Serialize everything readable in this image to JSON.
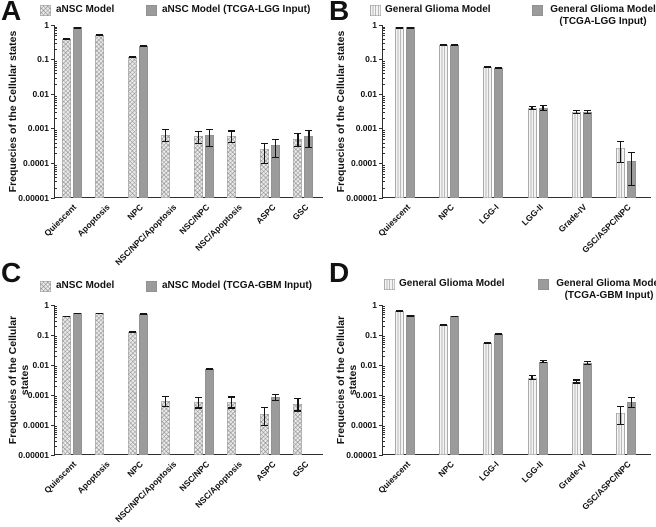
{
  "axes": {
    "yscale": "log",
    "ylim": [
      1e-05,
      1
    ],
    "y_ticks": [
      "1",
      "0.1",
      "0.01",
      "0.001",
      "0.0001",
      "0.00001"
    ]
  },
  "colors": {
    "light_bar": "#eaeaea",
    "dark_bar": "#9b9b9b",
    "error_bar": "#141414",
    "axis": "#2f2f2f"
  },
  "chart_data": [
    {
      "panel_label": "A",
      "type": "bar",
      "yscale": "log",
      "ylim": [
        1e-05,
        1
      ],
      "ylabel": "Frequecies of the Cellular states",
      "legend": [
        {
          "label": "aNSC Model",
          "label2": "",
          "pattern": "diamond",
          "color": "#eaeaea"
        },
        {
          "label": "aNSC Model (TCGA-LGG Input)",
          "label2": "",
          "pattern": "solid",
          "color": "#9b9b9b"
        }
      ],
      "categories": [
        "Quiescent",
        "Apoptosis",
        "NPC",
        "NSC/NPC/Apoptosis",
        "NSC/NPC",
        "NSC/Apoptosis",
        "ASPC",
        "GSC"
      ],
      "series": [
        {
          "name": "aNSC Model",
          "values": [
            0.4,
            0.53,
            0.12,
            0.00068,
            0.0006,
            0.00063,
            0.00026,
            0.0005
          ],
          "err_lo": [
            0.39,
            0.52,
            0.115,
            0.00042,
            0.00037,
            0.00038,
            9.5e-05,
            0.0003
          ],
          "err_hi": [
            0.41,
            0.54,
            0.125,
            0.00098,
            0.00088,
            0.0009,
            0.0004,
            0.00078
          ]
        },
        {
          "name": "aNSC Model (TCGA-LGG Input)",
          "values": [
            0.85,
            null,
            0.25,
            null,
            0.00065,
            null,
            0.00035,
            0.0006
          ],
          "err_lo": [
            0.83,
            null,
            0.24,
            null,
            0.0003,
            null,
            0.00014,
            0.00028
          ],
          "err_hi": [
            0.87,
            null,
            0.26,
            null,
            0.00099,
            null,
            0.00052,
            0.00095
          ]
        }
      ]
    },
    {
      "panel_label": "B",
      "type": "bar",
      "yscale": "log",
      "ylim": [
        1e-05,
        1
      ],
      "ylabel": "Frequecies of the Cellular states",
      "legend": [
        {
          "label": "General Glioma Model",
          "label2": "",
          "pattern": "vstripe",
          "color": "#f4f4f4"
        },
        {
          "label": "General Glioma Model",
          "label2": "(TCGA-LGG Input)",
          "pattern": "solid",
          "color": "#9b9b9b"
        }
      ],
      "categories": [
        "Quiescent",
        "NPC",
        "LGG-I",
        "LGG-II",
        "Grade-IV",
        "GSC/ASPC/NPC"
      ],
      "series": [
        {
          "name": "General Glioma Model",
          "values": [
            0.85,
            0.27,
            0.06,
            0.004,
            0.003,
            0.00028
          ],
          "err_lo": [
            0.83,
            0.26,
            0.056,
            0.0034,
            0.0026,
            0.0001
          ],
          "err_hi": [
            0.87,
            0.28,
            0.064,
            0.0047,
            0.0035,
            0.00045
          ]
        },
        {
          "name": "General Glioma Model (TCGA-LGG Input)",
          "values": [
            0.85,
            0.27,
            0.059,
            0.004,
            0.003,
            0.00012
          ],
          "err_lo": [
            0.83,
            0.26,
            0.055,
            0.0033,
            0.0026,
            2.2e-05
          ],
          "err_hi": [
            0.87,
            0.28,
            0.063,
            0.0048,
            0.0035,
            0.00022
          ]
        }
      ]
    },
    {
      "panel_label": "C",
      "type": "bar",
      "yscale": "log",
      "ylim": [
        1e-05,
        1
      ],
      "ylabel": "Frequecies of the Cellular states",
      "legend": [
        {
          "label": "aNSC Model",
          "label2": "",
          "pattern": "diamond",
          "color": "#eaeaea"
        },
        {
          "label": "aNSC Model (TCGA-GBM Input)",
          "label2": "",
          "pattern": "solid",
          "color": "#9b9b9b"
        }
      ],
      "categories": [
        "Quiescent",
        "Apoptosis",
        "NPC",
        "NSC/NPC/Apoptosis",
        "NSC/NPC",
        "NSC/Apoptosis",
        "ASPC",
        "GSC"
      ],
      "series": [
        {
          "name": "aNSC Model",
          "values": [
            0.42,
            0.55,
            0.13,
            0.00063,
            0.0006,
            0.0006,
            0.00023,
            0.0005
          ],
          "err_lo": [
            0.41,
            0.54,
            0.125,
            0.0004,
            0.00035,
            0.00035,
            9e-05,
            0.00028
          ],
          "err_hi": [
            0.43,
            0.56,
            0.135,
            0.00092,
            0.00085,
            0.0009,
            0.0004,
            0.0008
          ]
        },
        {
          "name": "aNSC Model (TCGA-GBM Input)",
          "values": [
            0.55,
            null,
            0.52,
            null,
            0.0075,
            null,
            0.00085,
            null
          ],
          "err_lo": [
            0.54,
            null,
            0.51,
            null,
            0.0068,
            null,
            0.00062,
            null
          ],
          "err_hi": [
            0.56,
            null,
            0.53,
            null,
            0.0082,
            null,
            0.0011,
            null
          ]
        }
      ]
    },
    {
      "panel_label": "D",
      "type": "bar",
      "yscale": "log",
      "ylim": [
        1e-05,
        1
      ],
      "ylabel": "Frequecies of the Cellular states",
      "legend": [
        {
          "label": "General Glioma Model",
          "label2": "",
          "pattern": "vstripe",
          "color": "#f4f4f4"
        },
        {
          "label": "General Glioma Model",
          "label2": "(TCGA-GBM Input)",
          "pattern": "solid",
          "color": "#9b9b9b"
        }
      ],
      "categories": [
        "Quiescent",
        "NPC",
        "LGG-I",
        "LGG-II",
        "Grade-IV",
        "GSC/ASPC/NPC"
      ],
      "series": [
        {
          "name": "General Glioma Model",
          "values": [
            0.65,
            0.22,
            0.055,
            0.0038,
            0.0028,
            0.00026
          ],
          "err_lo": [
            0.63,
            0.21,
            0.052,
            0.0031,
            0.0024,
            0.0001
          ],
          "err_hi": [
            0.67,
            0.23,
            0.058,
            0.0046,
            0.0033,
            0.00042
          ]
        },
        {
          "name": "General Glioma Model (TCGA-GBM Input)",
          "values": [
            0.45,
            0.42,
            0.11,
            0.013,
            0.012,
            0.0006
          ],
          "err_lo": [
            0.44,
            0.41,
            0.105,
            0.0115,
            0.0102,
            0.00037
          ],
          "err_hi": [
            0.46,
            0.43,
            0.115,
            0.0148,
            0.0138,
            0.00085
          ]
        }
      ]
    }
  ]
}
